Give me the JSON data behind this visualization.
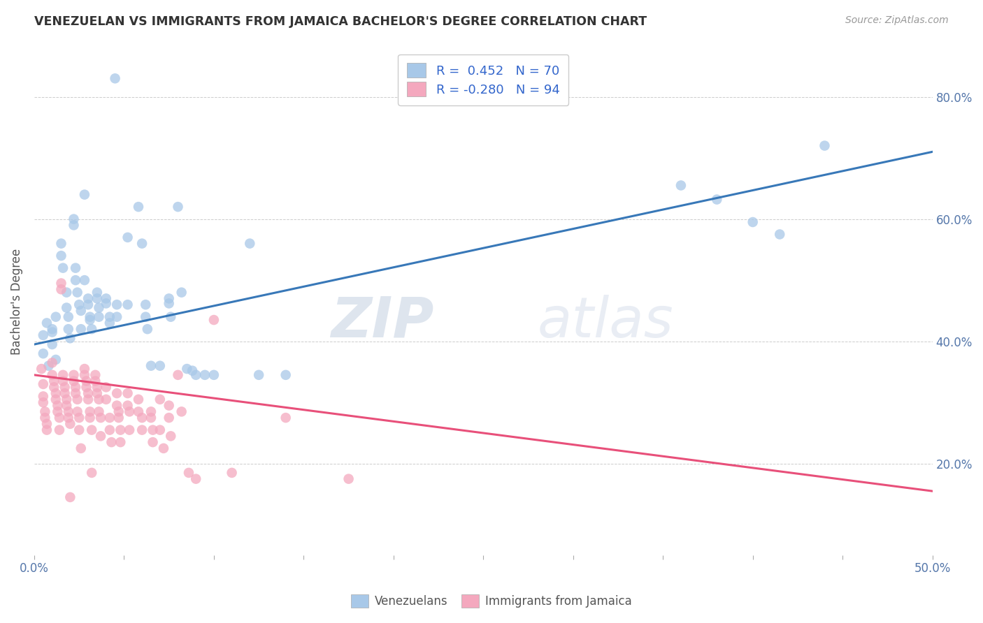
{
  "title": "VENEZUELAN VS IMMIGRANTS FROM JAMAICA BACHELOR'S DEGREE CORRELATION CHART",
  "source": "Source: ZipAtlas.com",
  "ylabel": "Bachelor's Degree",
  "legend_r1": "R =  0.452   N = 70",
  "legend_r2": "R = -0.280   N = 94",
  "legend_label1": "Venezuelans",
  "legend_label2": "Immigrants from Jamaica",
  "blue_color": "#a8c8e8",
  "pink_color": "#f4a8be",
  "blue_line_color": "#3878b8",
  "pink_line_color": "#e8507a",
  "xmin": 0.0,
  "xmax": 0.5,
  "ymin": 0.05,
  "ymax": 0.88,
  "watermark_zip": "ZIP",
  "watermark_atlas": "atlas",
  "blue_trendline": [
    [
      0.0,
      0.395
    ],
    [
      0.5,
      0.71
    ]
  ],
  "pink_trendline": [
    [
      0.0,
      0.345
    ],
    [
      0.5,
      0.155
    ]
  ],
  "blue_scatter": [
    [
      0.005,
      0.41
    ],
    [
      0.005,
      0.38
    ],
    [
      0.007,
      0.43
    ],
    [
      0.008,
      0.36
    ],
    [
      0.01,
      0.42
    ],
    [
      0.01,
      0.395
    ],
    [
      0.01,
      0.415
    ],
    [
      0.012,
      0.44
    ],
    [
      0.012,
      0.37
    ],
    [
      0.015,
      0.56
    ],
    [
      0.015,
      0.54
    ],
    [
      0.016,
      0.52
    ],
    [
      0.018,
      0.48
    ],
    [
      0.018,
      0.455
    ],
    [
      0.019,
      0.44
    ],
    [
      0.019,
      0.42
    ],
    [
      0.02,
      0.405
    ],
    [
      0.022,
      0.6
    ],
    [
      0.022,
      0.59
    ],
    [
      0.023,
      0.52
    ],
    [
      0.023,
      0.5
    ],
    [
      0.024,
      0.48
    ],
    [
      0.025,
      0.46
    ],
    [
      0.026,
      0.45
    ],
    [
      0.026,
      0.42
    ],
    [
      0.028,
      0.64
    ],
    [
      0.028,
      0.5
    ],
    [
      0.03,
      0.47
    ],
    [
      0.03,
      0.46
    ],
    [
      0.031,
      0.44
    ],
    [
      0.031,
      0.435
    ],
    [
      0.032,
      0.42
    ],
    [
      0.035,
      0.48
    ],
    [
      0.035,
      0.47
    ],
    [
      0.036,
      0.455
    ],
    [
      0.036,
      0.44
    ],
    [
      0.04,
      0.47
    ],
    [
      0.04,
      0.462
    ],
    [
      0.042,
      0.44
    ],
    [
      0.042,
      0.43
    ],
    [
      0.045,
      0.83
    ],
    [
      0.046,
      0.46
    ],
    [
      0.046,
      0.44
    ],
    [
      0.052,
      0.57
    ],
    [
      0.052,
      0.46
    ],
    [
      0.058,
      0.62
    ],
    [
      0.06,
      0.56
    ],
    [
      0.062,
      0.46
    ],
    [
      0.062,
      0.44
    ],
    [
      0.063,
      0.42
    ],
    [
      0.065,
      0.36
    ],
    [
      0.07,
      0.36
    ],
    [
      0.075,
      0.47
    ],
    [
      0.075,
      0.462
    ],
    [
      0.076,
      0.44
    ],
    [
      0.08,
      0.62
    ],
    [
      0.082,
      0.48
    ],
    [
      0.085,
      0.355
    ],
    [
      0.088,
      0.352
    ],
    [
      0.09,
      0.345
    ],
    [
      0.095,
      0.345
    ],
    [
      0.1,
      0.345
    ],
    [
      0.12,
      0.56
    ],
    [
      0.125,
      0.345
    ],
    [
      0.14,
      0.345
    ],
    [
      0.36,
      0.655
    ],
    [
      0.38,
      0.632
    ],
    [
      0.4,
      0.595
    ],
    [
      0.415,
      0.575
    ],
    [
      0.44,
      0.72
    ]
  ],
  "pink_scatter": [
    [
      0.004,
      0.355
    ],
    [
      0.005,
      0.33
    ],
    [
      0.005,
      0.31
    ],
    [
      0.005,
      0.3
    ],
    [
      0.006,
      0.285
    ],
    [
      0.006,
      0.275
    ],
    [
      0.007,
      0.265
    ],
    [
      0.007,
      0.255
    ],
    [
      0.01,
      0.365
    ],
    [
      0.01,
      0.345
    ],
    [
      0.011,
      0.335
    ],
    [
      0.011,
      0.325
    ],
    [
      0.012,
      0.315
    ],
    [
      0.012,
      0.305
    ],
    [
      0.013,
      0.295
    ],
    [
      0.013,
      0.285
    ],
    [
      0.014,
      0.275
    ],
    [
      0.014,
      0.255
    ],
    [
      0.015,
      0.495
    ],
    [
      0.015,
      0.485
    ],
    [
      0.016,
      0.345
    ],
    [
      0.016,
      0.335
    ],
    [
      0.017,
      0.325
    ],
    [
      0.017,
      0.315
    ],
    [
      0.018,
      0.305
    ],
    [
      0.018,
      0.295
    ],
    [
      0.019,
      0.285
    ],
    [
      0.019,
      0.275
    ],
    [
      0.02,
      0.265
    ],
    [
      0.02,
      0.145
    ],
    [
      0.022,
      0.345
    ],
    [
      0.022,
      0.335
    ],
    [
      0.023,
      0.325
    ],
    [
      0.023,
      0.315
    ],
    [
      0.024,
      0.305
    ],
    [
      0.024,
      0.285
    ],
    [
      0.025,
      0.275
    ],
    [
      0.025,
      0.255
    ],
    [
      0.026,
      0.225
    ],
    [
      0.028,
      0.355
    ],
    [
      0.028,
      0.345
    ],
    [
      0.029,
      0.335
    ],
    [
      0.029,
      0.325
    ],
    [
      0.03,
      0.315
    ],
    [
      0.03,
      0.305
    ],
    [
      0.031,
      0.285
    ],
    [
      0.031,
      0.275
    ],
    [
      0.032,
      0.255
    ],
    [
      0.032,
      0.185
    ],
    [
      0.034,
      0.345
    ],
    [
      0.034,
      0.335
    ],
    [
      0.035,
      0.325
    ],
    [
      0.035,
      0.315
    ],
    [
      0.036,
      0.305
    ],
    [
      0.036,
      0.285
    ],
    [
      0.037,
      0.275
    ],
    [
      0.037,
      0.245
    ],
    [
      0.04,
      0.325
    ],
    [
      0.04,
      0.305
    ],
    [
      0.042,
      0.275
    ],
    [
      0.042,
      0.255
    ],
    [
      0.043,
      0.235
    ],
    [
      0.046,
      0.315
    ],
    [
      0.046,
      0.295
    ],
    [
      0.047,
      0.285
    ],
    [
      0.047,
      0.275
    ],
    [
      0.048,
      0.255
    ],
    [
      0.048,
      0.235
    ],
    [
      0.052,
      0.315
    ],
    [
      0.052,
      0.295
    ],
    [
      0.053,
      0.285
    ],
    [
      0.053,
      0.255
    ],
    [
      0.058,
      0.305
    ],
    [
      0.058,
      0.285
    ],
    [
      0.06,
      0.275
    ],
    [
      0.06,
      0.255
    ],
    [
      0.065,
      0.285
    ],
    [
      0.065,
      0.275
    ],
    [
      0.066,
      0.255
    ],
    [
      0.066,
      0.235
    ],
    [
      0.07,
      0.305
    ],
    [
      0.07,
      0.255
    ],
    [
      0.072,
      0.225
    ],
    [
      0.075,
      0.295
    ],
    [
      0.075,
      0.275
    ],
    [
      0.076,
      0.245
    ],
    [
      0.08,
      0.345
    ],
    [
      0.082,
      0.285
    ],
    [
      0.086,
      0.185
    ],
    [
      0.09,
      0.175
    ],
    [
      0.1,
      0.435
    ],
    [
      0.11,
      0.185
    ],
    [
      0.14,
      0.275
    ],
    [
      0.175,
      0.175
    ]
  ]
}
